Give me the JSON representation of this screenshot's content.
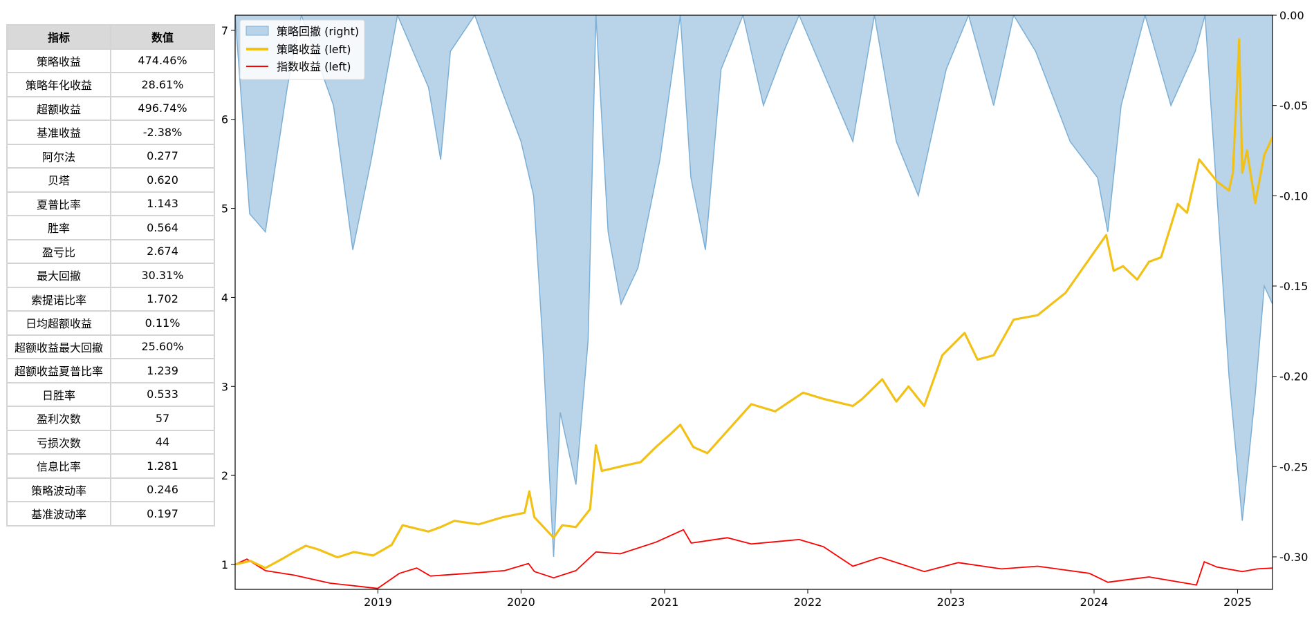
{
  "table": {
    "headers": [
      "指标",
      "数值"
    ],
    "rows": [
      [
        "策略收益",
        "474.46%"
      ],
      [
        "策略年化收益",
        "28.61%"
      ],
      [
        "超额收益",
        "496.74%"
      ],
      [
        "基准收益",
        "-2.38%"
      ],
      [
        "阿尔法",
        "0.277"
      ],
      [
        "贝塔",
        "0.620"
      ],
      [
        "夏普比率",
        "1.143"
      ],
      [
        "胜率",
        "0.564"
      ],
      [
        "盈亏比",
        "2.674"
      ],
      [
        "最大回撤",
        "30.31%"
      ],
      [
        "索提诺比率",
        "1.702"
      ],
      [
        "日均超额收益",
        "0.11%"
      ],
      [
        "超额收益最大回撤",
        "25.60%"
      ],
      [
        "超额收益夏普比率",
        "1.239"
      ],
      [
        "日胜率",
        "0.533"
      ],
      [
        "盈利次数",
        "57"
      ],
      [
        "亏损次数",
        "44"
      ],
      [
        "信息比率",
        "1.281"
      ],
      [
        "策略波动率",
        "0.246"
      ],
      [
        "基准波动率",
        "0.197"
      ]
    ]
  },
  "chart_data": {
    "type": "line",
    "colors": {
      "drawdown_fill": "#b9d3e8",
      "drawdown_line": "#7bafd6",
      "strategy": "#f2c116",
      "index": "#ff0000"
    },
    "x_range": [
      "2018-01-02",
      "2025-03-31"
    ],
    "x_ticks": [
      "2019",
      "2020",
      "2021",
      "2022",
      "2023",
      "2024",
      "2025"
    ],
    "y_left": {
      "range": [
        0.72,
        7.17
      ],
      "ticks": [
        "1",
        "2",
        "3",
        "4",
        "5",
        "6",
        "7"
      ]
    },
    "y_right": {
      "range": [
        -0.318,
        0.0
      ],
      "ticks": [
        "0.00",
        "-0.05",
        "-0.10",
        "-0.15",
        "-0.20",
        "-0.25",
        "-0.30"
      ]
    },
    "legend": {
      "position": "top-left"
    },
    "series": [
      {
        "name": "策略回撤 (right)",
        "axis": "right",
        "kind": "area",
        "points": [
          [
            "2018-01-02",
            0.0
          ],
          [
            "2018-02-08",
            -0.11
          ],
          [
            "2018-03-20",
            -0.12
          ],
          [
            "2018-05-15",
            -0.04
          ],
          [
            "2018-06-20",
            0.0
          ],
          [
            "2018-09-10",
            -0.05
          ],
          [
            "2018-10-29",
            -0.13
          ],
          [
            "2018-12-15",
            -0.08
          ],
          [
            "2019-02-20",
            0.0
          ],
          [
            "2019-05-10",
            -0.04
          ],
          [
            "2019-06-10",
            -0.08
          ],
          [
            "2019-07-05",
            -0.02
          ],
          [
            "2019-09-05",
            0.0
          ],
          [
            "2019-11-10",
            -0.04
          ],
          [
            "2020-01-01",
            -0.07
          ],
          [
            "2020-02-02",
            -0.1
          ],
          [
            "2020-02-25",
            -0.18
          ],
          [
            "2020-03-24",
            -0.3
          ],
          [
            "2020-04-10",
            -0.22
          ],
          [
            "2020-05-20",
            -0.26
          ],
          [
            "2020-06-20",
            -0.18
          ],
          [
            "2020-07-10",
            0.0
          ],
          [
            "2020-08-10",
            -0.12
          ],
          [
            "2020-09-12",
            -0.16
          ],
          [
            "2020-10-25",
            -0.14
          ],
          [
            "2020-12-20",
            -0.08
          ],
          [
            "2021-02-10",
            0.0
          ],
          [
            "2021-03-09",
            -0.09
          ],
          [
            "2021-04-15",
            -0.13
          ],
          [
            "2021-05-25",
            -0.03
          ],
          [
            "2021-07-20",
            0.0
          ],
          [
            "2021-09-10",
            -0.05
          ],
          [
            "2021-11-01",
            -0.02
          ],
          [
            "2021-12-10",
            0.0
          ],
          [
            "2022-04-26",
            -0.07
          ],
          [
            "2022-06-20",
            0.0
          ],
          [
            "2022-08-15",
            -0.07
          ],
          [
            "2022-10-10",
            -0.1
          ],
          [
            "2022-12-20",
            -0.03
          ],
          [
            "2023-02-15",
            0.0
          ],
          [
            "2023-04-20",
            -0.05
          ],
          [
            "2023-06-10",
            0.0
          ],
          [
            "2023-08-05",
            -0.02
          ],
          [
            "2023-11-01",
            -0.07
          ],
          [
            "2024-01-10",
            -0.09
          ],
          [
            "2024-02-05",
            -0.12
          ],
          [
            "2024-03-10",
            -0.05
          ],
          [
            "2024-05-10",
            0.0
          ],
          [
            "2024-07-15",
            -0.05
          ],
          [
            "2024-09-15",
            -0.02
          ],
          [
            "2024-10-10",
            0.0
          ],
          [
            "2024-10-25",
            -0.05
          ],
          [
            "2024-12-10",
            -0.2
          ],
          [
            "2025-01-13",
            -0.28
          ],
          [
            "2025-02-15",
            -0.21
          ],
          [
            "2025-03-10",
            -0.15
          ],
          [
            "2025-03-31",
            -0.16
          ]
        ]
      },
      {
        "name": "策略收益 (left)",
        "axis": "left",
        "kind": "line",
        "points": [
          [
            "2018-01-02",
            1.0
          ],
          [
            "2018-02-10",
            1.04
          ],
          [
            "2018-03-20",
            0.96
          ],
          [
            "2018-05-01",
            1.06
          ],
          [
            "2018-06-01",
            1.14
          ],
          [
            "2018-07-01",
            1.21
          ],
          [
            "2018-08-01",
            1.17
          ],
          [
            "2018-09-20",
            1.08
          ],
          [
            "2018-11-01",
            1.14
          ],
          [
            "2018-12-20",
            1.1
          ],
          [
            "2019-02-05",
            1.22
          ],
          [
            "2019-03-05",
            1.44
          ],
          [
            "2019-05-10",
            1.37
          ],
          [
            "2019-06-10",
            1.42
          ],
          [
            "2019-07-15",
            1.49
          ],
          [
            "2019-09-15",
            1.45
          ],
          [
            "2019-11-15",
            1.53
          ],
          [
            "2020-01-10",
            1.58
          ],
          [
            "2020-01-22",
            1.82
          ],
          [
            "2020-02-04",
            1.53
          ],
          [
            "2020-03-24",
            1.3
          ],
          [
            "2020-04-15",
            1.44
          ],
          [
            "2020-05-20",
            1.42
          ],
          [
            "2020-06-25",
            1.62
          ],
          [
            "2020-07-10",
            2.34
          ],
          [
            "2020-07-25",
            2.05
          ],
          [
            "2020-09-10",
            2.1
          ],
          [
            "2020-11-01",
            2.15
          ],
          [
            "2020-12-10",
            2.32
          ],
          [
            "2021-01-20",
            2.48
          ],
          [
            "2021-02-10",
            2.57
          ],
          [
            "2021-03-15",
            2.32
          ],
          [
            "2021-04-20",
            2.25
          ],
          [
            "2021-06-10",
            2.5
          ],
          [
            "2021-08-10",
            2.8
          ],
          [
            "2021-10-10",
            2.72
          ],
          [
            "2021-12-20",
            2.93
          ],
          [
            "2022-02-10",
            2.86
          ],
          [
            "2022-04-26",
            2.78
          ],
          [
            "2022-05-20",
            2.86
          ],
          [
            "2022-07-10",
            3.08
          ],
          [
            "2022-08-15",
            2.83
          ],
          [
            "2022-09-15",
            3.0
          ],
          [
            "2022-10-25",
            2.78
          ],
          [
            "2022-12-10",
            3.35
          ],
          [
            "2023-02-05",
            3.6
          ],
          [
            "2023-03-10",
            3.3
          ],
          [
            "2023-04-20",
            3.35
          ],
          [
            "2023-06-10",
            3.75
          ],
          [
            "2023-08-10",
            3.8
          ],
          [
            "2023-10-20",
            4.05
          ],
          [
            "2024-02-01",
            4.7
          ],
          [
            "2024-02-20",
            4.3
          ],
          [
            "2024-03-15",
            4.35
          ],
          [
            "2024-04-20",
            4.2
          ],
          [
            "2024-05-20",
            4.4
          ],
          [
            "2024-06-20",
            4.45
          ],
          [
            "2024-08-01",
            5.05
          ],
          [
            "2024-08-25",
            4.95
          ],
          [
            "2024-09-25",
            5.55
          ],
          [
            "2024-11-10",
            5.3
          ],
          [
            "2024-12-10",
            5.2
          ],
          [
            "2024-12-20",
            5.4
          ],
          [
            "2025-01-05",
            6.9
          ],
          [
            "2025-01-13",
            5.4
          ],
          [
            "2025-01-25",
            5.65
          ],
          [
            "2025-02-15",
            5.06
          ],
          [
            "2025-03-10",
            5.6
          ],
          [
            "2025-03-31",
            5.8
          ]
        ]
      },
      {
        "name": "指数收益 (left)",
        "axis": "left",
        "kind": "line",
        "points": [
          [
            "2018-01-02",
            1.0
          ],
          [
            "2018-02-01",
            1.06
          ],
          [
            "2018-03-20",
            0.93
          ],
          [
            "2018-06-01",
            0.88
          ],
          [
            "2018-09-01",
            0.79
          ],
          [
            "2018-11-01",
            0.76
          ],
          [
            "2018-12-31",
            0.73
          ],
          [
            "2019-02-25",
            0.9
          ],
          [
            "2019-04-10",
            0.96
          ],
          [
            "2019-05-15",
            0.87
          ],
          [
            "2019-08-20",
            0.9
          ],
          [
            "2019-11-20",
            0.93
          ],
          [
            "2020-01-20",
            1.01
          ],
          [
            "2020-02-04",
            0.92
          ],
          [
            "2020-03-24",
            0.85
          ],
          [
            "2020-05-20",
            0.93
          ],
          [
            "2020-07-10",
            1.14
          ],
          [
            "2020-09-10",
            1.12
          ],
          [
            "2020-12-10",
            1.25
          ],
          [
            "2021-02-18",
            1.39
          ],
          [
            "2021-03-10",
            1.24
          ],
          [
            "2021-06-10",
            1.3
          ],
          [
            "2021-08-10",
            1.23
          ],
          [
            "2021-12-10",
            1.28
          ],
          [
            "2022-02-10",
            1.2
          ],
          [
            "2022-04-26",
            0.98
          ],
          [
            "2022-07-05",
            1.08
          ],
          [
            "2022-10-25",
            0.92
          ],
          [
            "2023-01-20",
            1.02
          ],
          [
            "2023-05-10",
            0.95
          ],
          [
            "2023-08-10",
            0.98
          ],
          [
            "2023-12-20",
            0.9
          ],
          [
            "2024-02-05",
            0.8
          ],
          [
            "2024-05-20",
            0.86
          ],
          [
            "2024-09-18",
            0.77
          ],
          [
            "2024-10-08",
            1.03
          ],
          [
            "2024-11-10",
            0.97
          ],
          [
            "2025-01-13",
            0.92
          ],
          [
            "2025-02-20",
            0.95
          ],
          [
            "2025-03-31",
            0.96
          ]
        ]
      }
    ]
  }
}
